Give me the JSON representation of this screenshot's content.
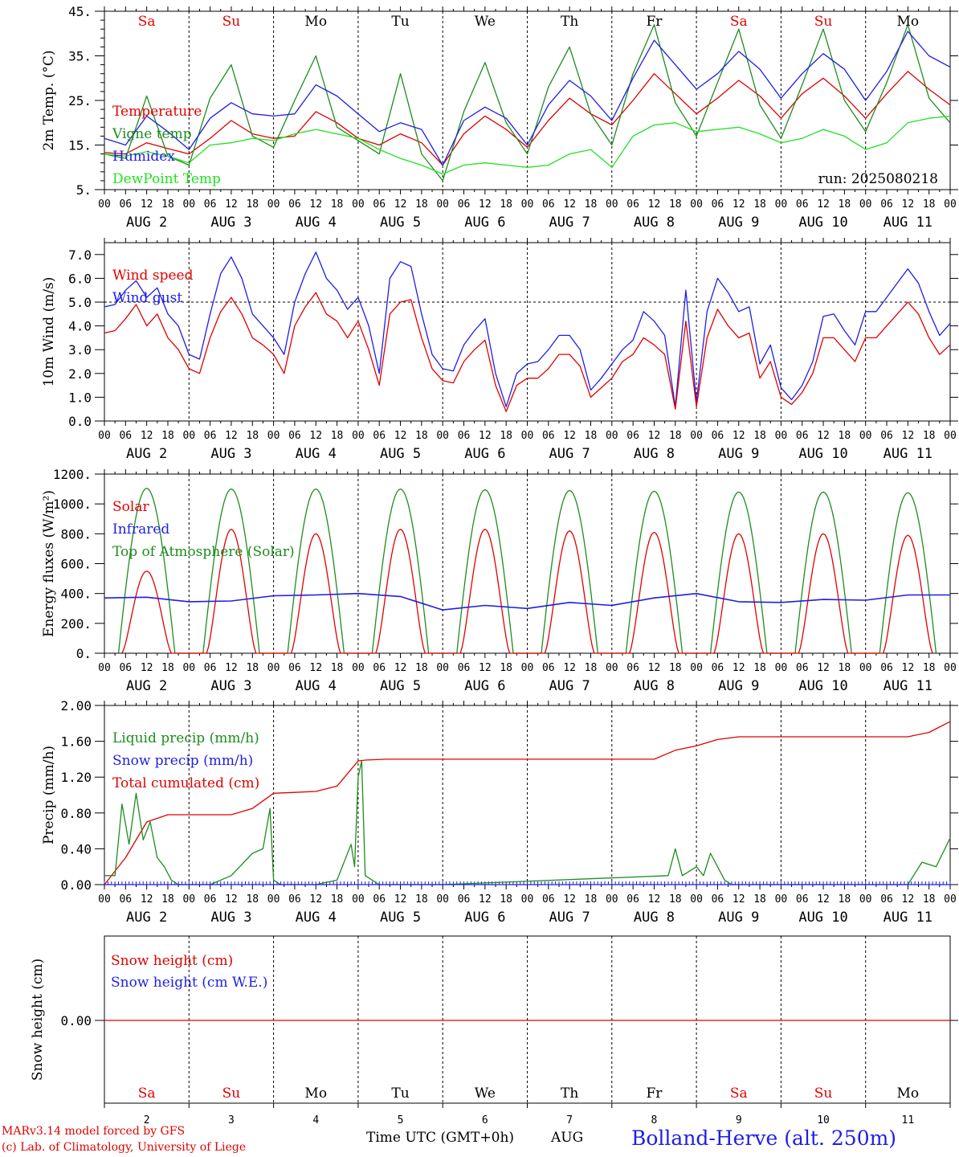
{
  "colors": {
    "red": "#e00000",
    "green": "#1e8c1e",
    "blue": "#1e1ee6",
    "lightgreen": "#22e022",
    "black": "#000000"
  },
  "run_label": "run: 2025080218",
  "footer": {
    "credit_line1": "MARv3.14 model forced by GFS",
    "credit_line2": "(c) Lab. of Climatology, University of Liege",
    "time_axis_label": "Time UTC (GMT+0h)",
    "month_label": "AUG",
    "station": "Bolland-Herve (alt. 250m)"
  },
  "days": {
    "names": [
      "Sa",
      "Su",
      "Mo",
      "Tu",
      "We",
      "Th",
      "Fr",
      "Sa",
      "Su",
      "Mo"
    ],
    "weekend": [
      true,
      true,
      false,
      false,
      false,
      false,
      false,
      true,
      true,
      false
    ],
    "dates": [
      "AUG  2",
      "AUG  3",
      "AUG  4",
      "AUG  5",
      "AUG  6",
      "AUG  7",
      "AUG  8",
      "AUG  9",
      "AUG 10",
      "AUG 11"
    ],
    "numbers": [
      "2",
      "3",
      "4",
      "5",
      "6",
      "7",
      "8",
      "9",
      "10",
      "11"
    ],
    "hour_ticks": [
      "00",
      "06",
      "12",
      "18"
    ],
    "final_tick": "00"
  },
  "chart_data": [
    {
      "type": "line",
      "ylabel": "2m Temp. (°C)",
      "ylim": [
        5,
        45
      ],
      "yticks": [
        "5.",
        "15.",
        "25.",
        "35.",
        "45."
      ],
      "x_unit": "hours from AUG 2 00 UTC",
      "legend": [
        "Temperature",
        "Vigne temp",
        "Humidex",
        "DewPoint Temp"
      ],
      "series": [
        {
          "name": "Temperature",
          "color": "red",
          "x": [
            0,
            6,
            12,
            18,
            24,
            30,
            36,
            42,
            48,
            54,
            60,
            66,
            72,
            78,
            84,
            90,
            96,
            102,
            108,
            114,
            120,
            126,
            132,
            138,
            144,
            150,
            156,
            162,
            168,
            174,
            180,
            186,
            192,
            198,
            204,
            210,
            216,
            222,
            228,
            234,
            240
          ],
          "values": [
            13.3,
            13.0,
            15.5,
            14.2,
            13.0,
            16.5,
            20.5,
            17.5,
            16.5,
            17.0,
            22.5,
            20.0,
            16.5,
            15.0,
            17.5,
            15.5,
            10.5,
            17.5,
            21.5,
            18.5,
            14.5,
            20.5,
            25.5,
            22.0,
            19.5,
            25.0,
            31.0,
            26.5,
            22.0,
            25.5,
            29.5,
            26.0,
            21.0,
            26.5,
            30.0,
            26.0,
            21.0,
            26.5,
            31.5,
            27.5,
            24.0
          ]
        },
        {
          "name": "Vigne temp",
          "color": "green",
          "x": [
            0,
            6,
            12,
            18,
            24,
            30,
            36,
            42,
            48,
            54,
            60,
            66,
            72,
            78,
            84,
            90,
            96,
            102,
            108,
            114,
            120,
            126,
            132,
            138,
            144,
            150,
            156,
            162,
            168,
            174,
            180,
            186,
            192,
            198,
            204,
            210,
            216,
            222,
            228,
            234,
            240
          ],
          "values": [
            13.0,
            12.0,
            26.0,
            12.5,
            10.5,
            25.5,
            33.0,
            17.0,
            14.5,
            25.0,
            35.0,
            19.0,
            16.0,
            13.0,
            31.0,
            13.0,
            7.0,
            22.5,
            33.5,
            20.0,
            13.0,
            28.0,
            37.0,
            22.0,
            15.0,
            31.0,
            42.0,
            24.5,
            17.0,
            29.0,
            41.0,
            24.0,
            16.5,
            28.5,
            41.0,
            25.0,
            18.0,
            29.0,
            42.0,
            25.5,
            20.0
          ]
        },
        {
          "name": "Humidex",
          "color": "blue",
          "x": [
            0,
            6,
            12,
            18,
            24,
            30,
            36,
            42,
            48,
            54,
            60,
            66,
            72,
            78,
            84,
            90,
            96,
            102,
            108,
            114,
            120,
            126,
            132,
            138,
            144,
            150,
            156,
            162,
            168,
            174,
            180,
            186,
            192,
            198,
            204,
            210,
            216,
            222,
            228,
            234,
            240
          ],
          "values": [
            16.5,
            15.0,
            21.5,
            18.0,
            14.0,
            21.0,
            24.5,
            22.0,
            21.5,
            22.0,
            28.5,
            26.0,
            22.0,
            18.0,
            20.0,
            18.5,
            10.5,
            20.5,
            23.5,
            21.0,
            15.0,
            24.0,
            29.5,
            26.0,
            20.5,
            30.0,
            38.5,
            33.0,
            27.5,
            31.0,
            36.0,
            32.0,
            25.5,
            31.0,
            35.5,
            32.0,
            25.0,
            31.5,
            40.5,
            35.0,
            32.5
          ]
        },
        {
          "name": "DewPoint Temp",
          "color": "lightgreen",
          "x": [
            0,
            6,
            12,
            18,
            24,
            30,
            36,
            42,
            48,
            54,
            60,
            66,
            72,
            78,
            84,
            90,
            96,
            102,
            108,
            114,
            120,
            126,
            132,
            138,
            144,
            150,
            156,
            162,
            168,
            174,
            180,
            186,
            192,
            198,
            204,
            210,
            216,
            222,
            228,
            234,
            240
          ],
          "values": [
            13.0,
            12.5,
            13.5,
            12.5,
            11.0,
            15.0,
            15.5,
            16.5,
            16.0,
            17.5,
            18.5,
            17.5,
            16.5,
            14.0,
            12.0,
            10.5,
            8.5,
            10.5,
            11.0,
            10.5,
            10.0,
            10.5,
            13.0,
            14.0,
            10.0,
            17.0,
            19.5,
            20.0,
            18.0,
            18.5,
            19.0,
            17.5,
            15.5,
            16.5,
            18.5,
            17.0,
            14.0,
            15.5,
            20.0,
            21.0,
            21.5
          ]
        }
      ]
    },
    {
      "type": "line",
      "ylabel": "10m Wind (m/s)",
      "ylim": [
        0,
        7.5
      ],
      "yticks": [
        "0.0",
        "1.0",
        "2.0",
        "3.0",
        "4.0",
        "5.0",
        "6.0",
        "7.0"
      ],
      "ref_line": 5.0,
      "legend": [
        "Wind speed",
        "Wind gust"
      ],
      "series": [
        {
          "name": "Wind speed",
          "color": "red",
          "x": [
            0,
            3,
            6,
            9,
            12,
            15,
            18,
            21,
            24,
            27,
            30,
            33,
            36,
            39,
            42,
            45,
            48,
            51,
            54,
            57,
            60,
            63,
            66,
            69,
            72,
            75,
            78,
            81,
            84,
            87,
            90,
            93,
            96,
            99,
            102,
            105,
            108,
            111,
            114,
            117,
            120,
            123,
            126,
            129,
            132,
            135,
            138,
            141,
            144,
            147,
            150,
            153,
            156,
            159,
            162,
            165,
            168,
            171,
            174,
            177,
            180,
            183,
            186,
            189,
            192,
            195,
            198,
            201,
            204,
            207,
            210,
            213,
            216,
            219,
            222,
            225,
            228,
            231,
            234,
            237,
            240
          ],
          "values": [
            3.7,
            3.8,
            4.3,
            4.9,
            4.0,
            4.5,
            3.5,
            3.0,
            2.2,
            2.0,
            3.5,
            4.6,
            5.2,
            4.5,
            3.5,
            3.2,
            2.8,
            2.0,
            4.0,
            4.8,
            5.4,
            4.5,
            4.2,
            3.5,
            4.2,
            3.0,
            1.5,
            4.5,
            5.0,
            5.1,
            3.5,
            2.2,
            1.7,
            1.6,
            2.5,
            3.0,
            3.4,
            1.5,
            0.4,
            1.5,
            1.8,
            1.8,
            2.2,
            2.8,
            2.8,
            2.3,
            1.0,
            1.4,
            1.8,
            2.5,
            2.8,
            3.5,
            3.2,
            2.8,
            0.5,
            4.2,
            0.6,
            3.5,
            4.7,
            4.0,
            3.5,
            3.7,
            1.8,
            2.5,
            1.0,
            0.7,
            1.2,
            2.0,
            3.5,
            3.5,
            3.0,
            2.5,
            3.5,
            3.5,
            4.0,
            4.5,
            5.0,
            4.5,
            3.5,
            2.8,
            3.2
          ]
        },
        {
          "name": "Wind gust",
          "color": "blue",
          "x": [
            0,
            3,
            6,
            9,
            12,
            15,
            18,
            21,
            24,
            27,
            30,
            33,
            36,
            39,
            42,
            45,
            48,
            51,
            54,
            57,
            60,
            63,
            66,
            69,
            72,
            75,
            78,
            81,
            84,
            87,
            90,
            93,
            96,
            99,
            102,
            105,
            108,
            111,
            114,
            117,
            120,
            123,
            126,
            129,
            132,
            135,
            138,
            141,
            144,
            147,
            150,
            153,
            156,
            159,
            162,
            165,
            168,
            171,
            174,
            177,
            180,
            183,
            186,
            189,
            192,
            195,
            198,
            201,
            204,
            207,
            210,
            213,
            216,
            219,
            222,
            225,
            228,
            231,
            234,
            237,
            240
          ],
          "values": [
            4.8,
            4.9,
            5.5,
            5.9,
            5.2,
            5.6,
            4.5,
            4.0,
            2.8,
            2.6,
            4.5,
            6.2,
            6.9,
            6.0,
            4.5,
            4.0,
            3.5,
            2.8,
            5.0,
            6.2,
            7.1,
            6.0,
            5.5,
            4.7,
            5.2,
            4.0,
            2.0,
            6.0,
            6.7,
            6.5,
            4.5,
            2.8,
            2.2,
            2.1,
            3.2,
            3.8,
            4.3,
            2.0,
            0.6,
            2.0,
            2.4,
            2.5,
            3.0,
            3.6,
            3.6,
            3.0,
            1.3,
            1.8,
            2.4,
            3.0,
            3.4,
            4.6,
            4.2,
            3.6,
            0.6,
            5.5,
            0.8,
            4.6,
            6.0,
            5.4,
            4.6,
            4.8,
            2.4,
            3.2,
            1.4,
            0.9,
            1.5,
            2.5,
            4.4,
            4.5,
            3.8,
            3.2,
            4.6,
            4.6,
            5.2,
            5.8,
            6.4,
            5.8,
            4.6,
            3.6,
            4.1
          ]
        }
      ]
    },
    {
      "type": "line",
      "ylabel": "Energy fluxes (W/m²)",
      "ylim": [
        0,
        1200
      ],
      "yticks": [
        "0.",
        "200.",
        "400.",
        "600.",
        "800.",
        "1000.",
        "1200."
      ],
      "legend": [
        "Solar",
        "Infrared",
        "Top of Atmosphere (Solar)"
      ],
      "toa_daily_peak": [
        1105,
        1100,
        1100,
        1100,
        1095,
        1090,
        1085,
        1080,
        1080,
        1075
      ],
      "solar_daily_peak": [
        550,
        830,
        800,
        830,
        830,
        820,
        810,
        800,
        800,
        790
      ],
      "infrared": {
        "x": [
          0,
          12,
          24,
          36,
          48,
          60,
          72,
          84,
          96,
          108,
          120,
          132,
          144,
          156,
          168,
          180,
          192,
          204,
          216,
          228,
          240
        ],
        "values": [
          370,
          375,
          345,
          350,
          385,
          390,
          400,
          380,
          290,
          320,
          300,
          340,
          320,
          370,
          400,
          345,
          340,
          360,
          355,
          390,
          390
        ]
      }
    },
    {
      "type": "line",
      "ylabel": "Precip (mm/h)",
      "ylim": [
        0,
        2.0
      ],
      "yticks": [
        "0.00",
        "0.40",
        "0.80",
        "1.20",
        "1.60",
        "2.00"
      ],
      "legend": [
        "Liquid precip (mm/h)",
        "Snow precip (mm/h)",
        "Total cumulated (cm)"
      ],
      "series": [
        {
          "name": "Total cumulated (cm)",
          "color": "red",
          "x": [
            0,
            6,
            12,
            18,
            24,
            30,
            36,
            42,
            48,
            54,
            60,
            66,
            72,
            74,
            80,
            96,
            120,
            144,
            156,
            162,
            168,
            174,
            180,
            192,
            216,
            228,
            234,
            240
          ],
          "values": [
            0.0,
            0.3,
            0.7,
            0.78,
            0.78,
            0.78,
            0.78,
            0.85,
            1.02,
            1.03,
            1.04,
            1.1,
            1.38,
            1.39,
            1.4,
            1.4,
            1.4,
            1.4,
            1.4,
            1.5,
            1.55,
            1.62,
            1.65,
            1.65,
            1.65,
            1.65,
            1.7,
            1.82
          ]
        },
        {
          "name": "Liquid precip (mm/h)",
          "color": "green",
          "x": [
            0,
            3,
            5,
            7,
            9,
            11,
            13,
            15,
            17,
            19,
            21,
            30,
            36,
            42,
            45,
            47,
            48,
            50,
            60,
            66,
            70,
            71,
            72,
            73,
            74,
            76,
            78,
            84,
            96,
            160,
            162,
            164,
            166,
            168,
            170,
            172,
            174,
            176,
            178,
            180,
            228,
            232,
            236,
            240
          ],
          "values": [
            0.1,
            0.1,
            0.9,
            0.45,
            1.02,
            0.5,
            0.7,
            0.3,
            0.2,
            0.05,
            0.0,
            0.0,
            0.1,
            0.35,
            0.4,
            0.85,
            0.05,
            0.0,
            0.0,
            0.05,
            0.45,
            0.2,
            1.2,
            1.38,
            0.1,
            0.05,
            0.0,
            0.0,
            0.0,
            0.1,
            0.4,
            0.1,
            0.15,
            0.2,
            0.1,
            0.35,
            0.2,
            0.05,
            0.0,
            0.0,
            0.0,
            0.25,
            0.2,
            0.52
          ]
        },
        {
          "name": "Snow precip (mm/h)",
          "color": "blue",
          "x": [
            0,
            240
          ],
          "values": [
            0.0,
            0.0
          ]
        }
      ]
    },
    {
      "type": "line",
      "ylabel": "Snow height (cm)",
      "yticks": [
        "0.00"
      ],
      "legend": [
        "Snow height (cm)",
        "Snow height (cm W.E.)"
      ],
      "series": [
        {
          "name": "Snow height (cm)",
          "color": "red",
          "x": [
            0,
            240
          ],
          "values": [
            0.0,
            0.0
          ]
        }
      ]
    }
  ]
}
